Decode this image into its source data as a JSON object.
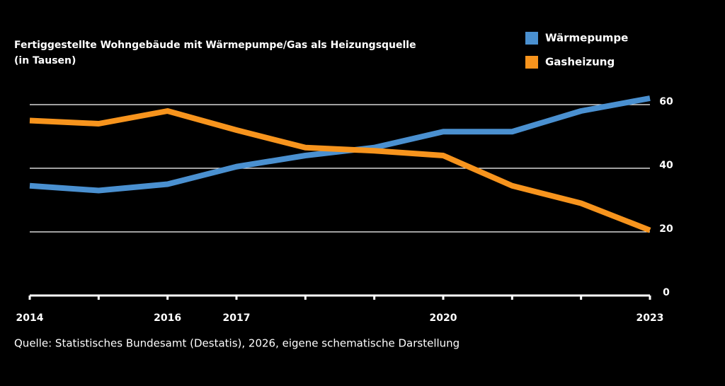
{
  "chart_data": {
    "type": "line",
    "title": "Fertiggestellte Wohngebäude mit Wärmepumpe/Gas als Heizungsquelle",
    "subtitle": "(in Tausen)",
    "source": "Quelle: Statistisches Bundesamt (Destatis), 2026, eigene schematische Darstellung",
    "categories": [
      "2014",
      null,
      "2016",
      "2017",
      null,
      null,
      "2020",
      null,
      null,
      "2023"
    ],
    "series": [
      {
        "name": "Wärmepumpe",
        "color": "#4a90d0",
        "values": [
          34.5,
          33,
          35,
          40.5,
          44,
          46.5,
          51.5,
          51.5,
          58,
          62
        ]
      },
      {
        "name": "Gasheizung",
        "color": "#f7941d",
        "values": [
          55,
          54,
          58,
          52,
          46.5,
          45.5,
          44,
          34.5,
          29,
          20.5
        ]
      }
    ],
    "ylim": [
      0,
      65
    ],
    "yticks": [
      0,
      20,
      40,
      60
    ],
    "grid": true
  }
}
